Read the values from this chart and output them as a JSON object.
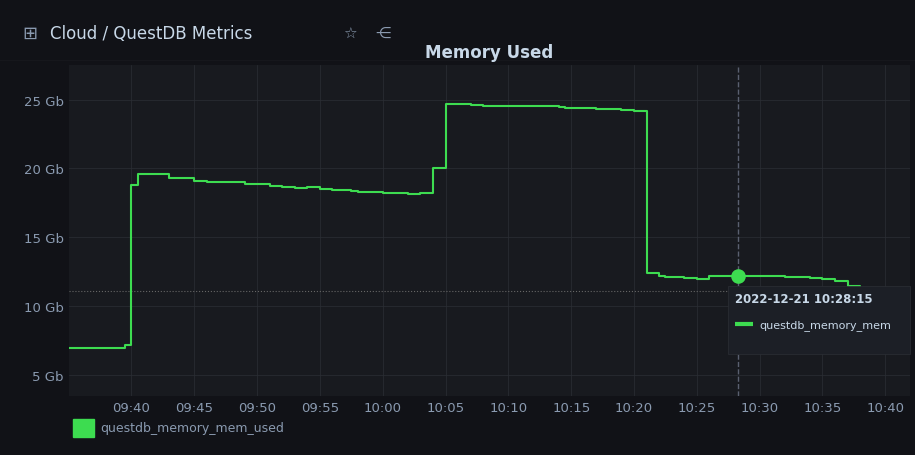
{
  "title": "Memory Used",
  "title_color": "#c8d8e8",
  "bg_color": "#111217",
  "panel_bg_color": "#181a1f",
  "plot_bg_color": "#181a1f",
  "header_bg_color": "#111217",
  "grid_color": "#2c2f35",
  "line_color": "#3ddc50",
  "axis_label_color": "#8a9ab0",
  "tick_label_color": "#8a9ab0",
  "legend_label": "questdb_memory_mem_used",
  "tooltip_text": "2022-12-21 10:28:15",
  "tooltip_series": "questdb_memory_mem",
  "header_text": "Cloud / QuestDB Metrics",
  "x_ticks": [
    "09:40",
    "09:45",
    "09:50",
    "09:55",
    "10:00",
    "10:05",
    "10:10",
    "10:15",
    "10:20",
    "10:25",
    "10:30",
    "10:35",
    "10:40"
  ],
  "y_ticks": [
    "5 Gb",
    "10 Gb",
    "15 Gb",
    "20 Gb",
    "25 Gb"
  ],
  "y_values": [
    5,
    10,
    15,
    20,
    25
  ],
  "ylim": [
    3.5,
    27.5
  ],
  "dashed_hline": 11.1,
  "crosshair_x": 53.25,
  "marker_x": 53.25,
  "marker_y": 12.2,
  "x_data": [
    0.0,
    1.0,
    4.5,
    5.0,
    5.5,
    8.0,
    10.0,
    11.0,
    12.0,
    14.0,
    16.0,
    17.0,
    18.0,
    19.0,
    20.0,
    21.0,
    22.0,
    22.5,
    23.0,
    24.0,
    25.0,
    26.0,
    27.0,
    28.0,
    29.0,
    30.0,
    31.0,
    32.0,
    33.0,
    34.0,
    35.0,
    36.0,
    37.0,
    38.0,
    39.0,
    39.5,
    40.0,
    41.0,
    42.0,
    43.0,
    44.0,
    45.0,
    46.0,
    47.0,
    47.5,
    48.0,
    49.0,
    50.0,
    51.0,
    52.0,
    53.0,
    54.0,
    55.0,
    56.0,
    57.0,
    58.0,
    59.0,
    60.0,
    61.0,
    62.0,
    63.0,
    64.0,
    65.0
  ],
  "y_data": [
    7.0,
    7.0,
    7.2,
    18.8,
    19.6,
    19.3,
    19.1,
    19.0,
    19.0,
    18.9,
    18.7,
    18.65,
    18.6,
    18.65,
    18.5,
    18.45,
    18.4,
    18.35,
    18.3,
    18.3,
    18.25,
    18.2,
    18.15,
    18.2,
    20.0,
    24.65,
    24.7,
    24.6,
    24.55,
    24.55,
    24.55,
    24.5,
    24.5,
    24.5,
    24.45,
    24.4,
    24.4,
    24.4,
    24.35,
    24.3,
    24.25,
    24.2,
    12.4,
    12.2,
    12.15,
    12.1,
    12.05,
    12.0,
    12.2,
    12.2,
    12.2,
    12.2,
    12.2,
    12.2,
    12.15,
    12.1,
    12.05,
    12.0,
    11.8,
    11.5,
    11.2,
    10.8,
    10.5
  ],
  "tooltip_bg": "#1c1f26",
  "tooltip_border": "#2c2f35",
  "tooltip_title_color": "#c8d8e8",
  "tooltip_series_color": "#3ddc50",
  "xlim": [
    0,
    67
  ]
}
